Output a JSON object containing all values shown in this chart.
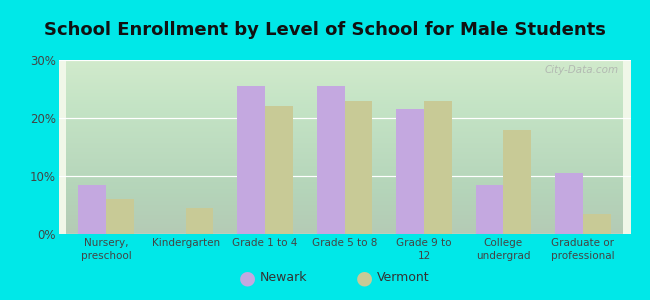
{
  "title": "School Enrollment by Level of School for Male Students",
  "categories": [
    "Nursery,\npreschool",
    "Kindergarten",
    "Grade 1 to 4",
    "Grade 5 to 8",
    "Grade 9 to\n12",
    "College\nundergrad",
    "Graduate or\nprofessional"
  ],
  "newark": [
    8.5,
    0,
    25.5,
    25.5,
    21.5,
    8.5,
    10.5
  ],
  "vermont": [
    6.0,
    4.5,
    22.0,
    23.0,
    23.0,
    18.0,
    3.5
  ],
  "newark_color": "#c4a8e0",
  "vermont_color": "#c8ca96",
  "background_outer": "#00e8e8",
  "ylim": [
    0,
    30
  ],
  "yticks": [
    0,
    10,
    20,
    30
  ],
  "ytick_labels": [
    "0%",
    "10%",
    "20%",
    "30%"
  ],
  "title_fontsize": 13,
  "legend_labels": [
    "Newark",
    "Vermont"
  ],
  "bar_width": 0.35,
  "watermark": "City-Data.com"
}
